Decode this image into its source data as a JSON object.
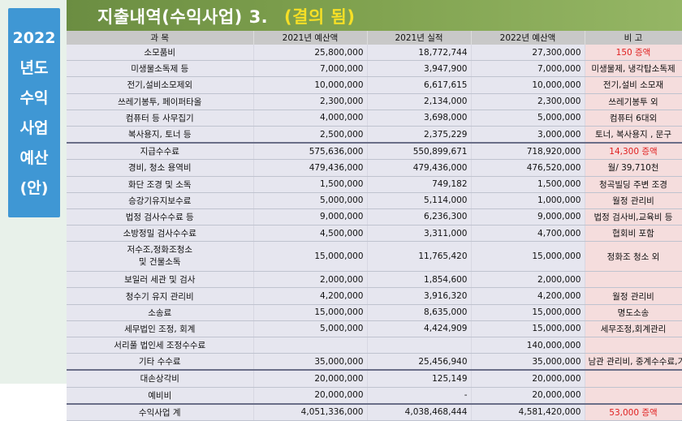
{
  "sidebar": {
    "lines": [
      "2022",
      "년도",
      "수익",
      "사업",
      "예산",
      "(안)"
    ]
  },
  "title": {
    "main": "지출내역(수익사업) 3.",
    "status": "(결의 됨)"
  },
  "table": {
    "headers": [
      "과  목",
      "2021년 예산액",
      "2021년 실적",
      "2022년 예산액",
      "비        고"
    ],
    "rows": [
      {
        "item": "소모품비",
        "budget2021": "25,800,000",
        "actual2021": "18,772,744",
        "budget2022": "27,300,000",
        "remark": "150 증액"
      },
      {
        "item": "미생물소독제 등",
        "budget2021": "7,000,000",
        "actual2021": "3,947,900",
        "budget2022": "7,000,000",
        "remark": "미생물제, 냉각탑소독제"
      },
      {
        "item": "전기,설비소모제외",
        "budget2021": "10,000,000",
        "actual2021": "6,617,615",
        "budget2022": "10,000,000",
        "remark": "전기,설비 소모재"
      },
      {
        "item": "쓰레기봉투, 페이퍼타올",
        "budget2021": "2,300,000",
        "actual2021": "2,134,000",
        "budget2022": "2,300,000",
        "remark": "쓰레기봉투 외"
      },
      {
        "item": "컴퓨터 등 사무집기",
        "budget2021": "4,000,000",
        "actual2021": "3,698,000",
        "budget2022": "5,000,000",
        "remark": "컴퓨터 6대외"
      },
      {
        "item": "복사용지, 토너 등",
        "budget2021": "2,500,000",
        "actual2021": "2,375,229",
        "budget2022": "3,000,000",
        "remark": "토너, 복사용지 , 문구"
      },
      {
        "item": "지급수수료",
        "budget2021": "575,636,000",
        "actual2021": "550,899,671",
        "budget2022": "718,920,000",
        "remark": "14,300 증액"
      },
      {
        "item": "경비, 청소 용역비",
        "budget2021": "479,436,000",
        "actual2021": "479,436,000",
        "budget2022": "476,520,000",
        "remark": "월/ 39,710천"
      },
      {
        "item": "화단 조경 및 소독",
        "budget2021": "1,500,000",
        "actual2021": "749,182",
        "budget2022": "1,500,000",
        "remark": "청곡빌딩 주변 조경"
      },
      {
        "item": "승강기유지보수료",
        "budget2021": "5,000,000",
        "actual2021": "5,114,000",
        "budget2022": "1,000,000",
        "remark": "월정 관리비"
      },
      {
        "item": "법정 검사수수료 등",
        "budget2021": "9,000,000",
        "actual2021": "6,236,300",
        "budget2022": "9,000,000",
        "remark": "법정 검사비,교육비 등"
      },
      {
        "item": "소방정밀 검사수수료",
        "budget2021": "4,500,000",
        "actual2021": "3,311,000",
        "budget2022": "4,700,000",
        "remark": "협회비 포함"
      },
      {
        "item": "저수조,정화조청소",
        "item2": "및 건물소독",
        "budget2021": "15,000,000",
        "actual2021": "11,765,420",
        "budget2022": "15,000,000",
        "remark": "정화조 청소 외"
      },
      {
        "item": "보일러 세관 및 검사",
        "budget2021": "2,000,000",
        "actual2021": "1,854,600",
        "budget2022": "2,000,000",
        "remark": ""
      },
      {
        "item": "청수기 유지 관리비",
        "budget2021": "4,200,000",
        "actual2021": "3,916,320",
        "budget2022": "4,200,000",
        "remark": "월정 관리비"
      },
      {
        "item": "소송료",
        "budget2021": "15,000,000",
        "actual2021": "8,635,000",
        "budget2022": "15,000,000",
        "remark": "명도소송"
      },
      {
        "item": "세무법인 조정, 회계",
        "budget2021": "5,000,000",
        "actual2021": "4,424,909",
        "budget2022": "15,000,000",
        "remark": "세무조정,회계관리"
      },
      {
        "item": "서리풀 법인세 조정수수료",
        "budget2021": "",
        "actual2021": "",
        "budget2022": "140,000,000",
        "remark": ""
      },
      {
        "item": "기타 수수료",
        "budget2021": "35,000,000",
        "actual2021": "25,456,940",
        "budget2022": "35,000,000",
        "remark": "남관 관리비, 중계수수료,기타"
      },
      {
        "item": "대손상각비",
        "budget2021": "20,000,000",
        "actual2021": "125,149",
        "budget2022": "20,000,000",
        "remark": ""
      },
      {
        "item": "예비비",
        "budget2021": "20,000,000",
        "actual2021": "-",
        "budget2022": "20,000,000",
        "remark": ""
      }
    ],
    "total": {
      "item": "수익사업   계",
      "budget2021": "4,051,336,000",
      "actual2021": "4,038,468,444",
      "budget2022": "4,581,420,000",
      "remark": "53,000 증액"
    }
  },
  "colors": {
    "title_bar": "#7fa14e",
    "title_status": "#f6df26",
    "sidebar_panel": "#3f97d4",
    "increase_text": "#e02020",
    "row_bg": "#e6e6ef",
    "remark_bg": "#f5dddd"
  }
}
